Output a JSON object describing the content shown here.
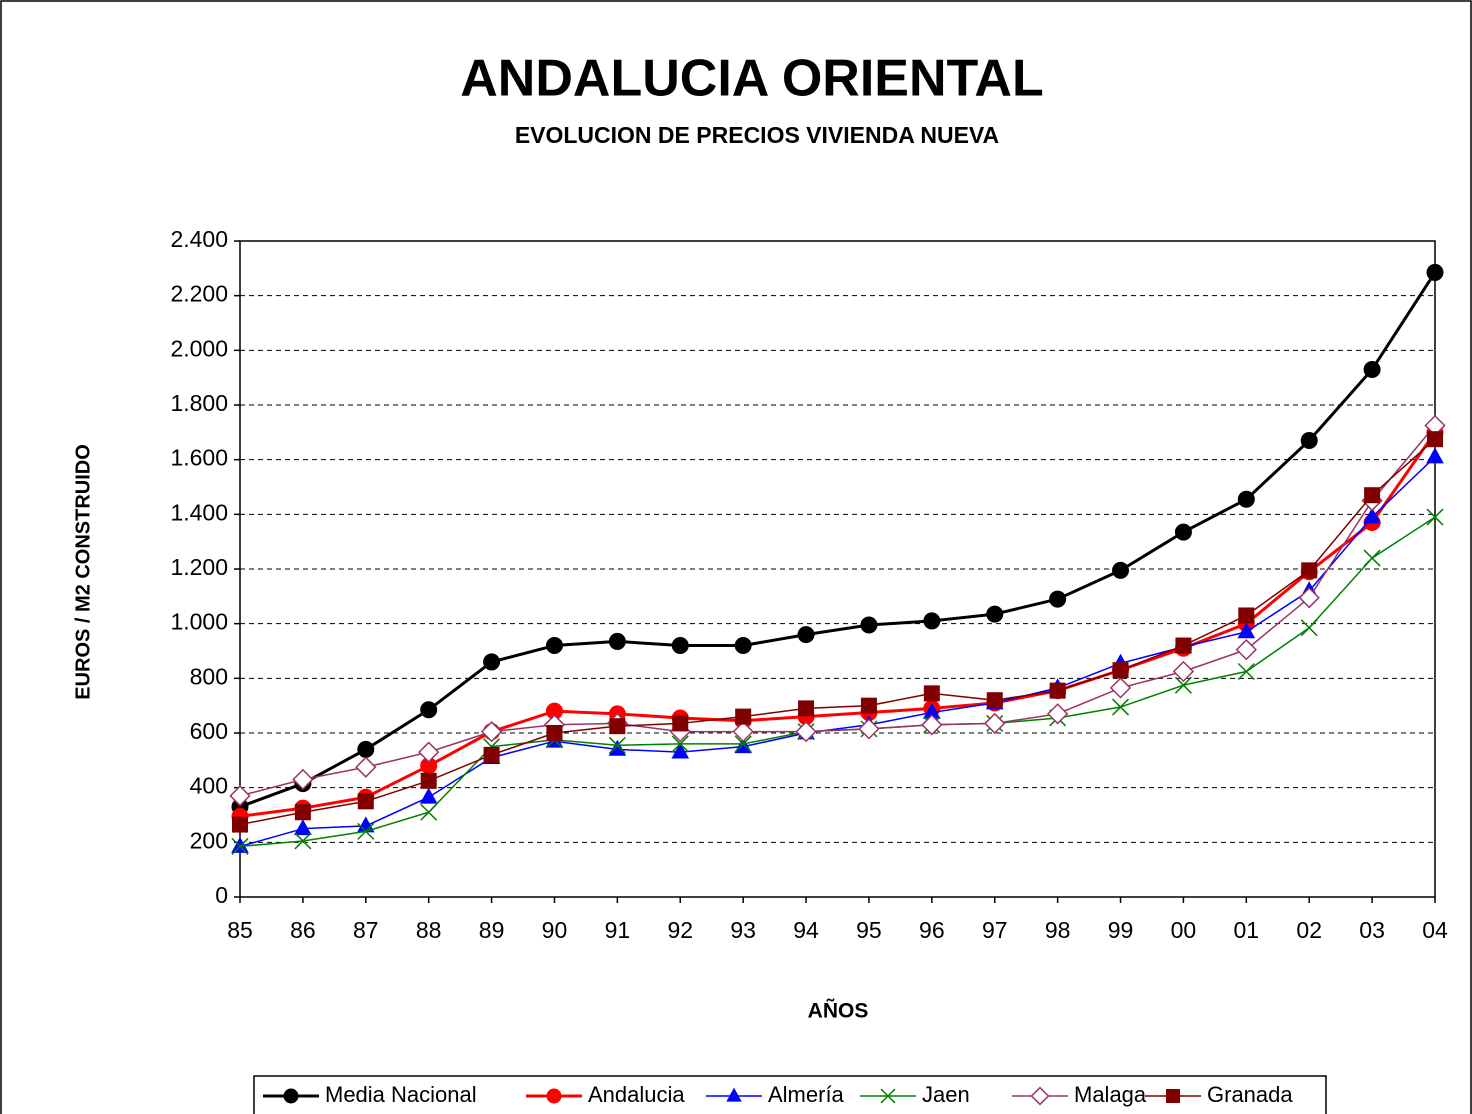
{
  "chart_data": {
    "type": "line",
    "title": "ANDALUCIA  ORIENTAL",
    "subtitle": "EVOLUCION DE PRECIOS VIVIENDA NUEVA",
    "x_label": "AÑOS",
    "y_label": "EUROS / M2 CONSTRUIDO",
    "categories": [
      "85",
      "86",
      "87",
      "88",
      "89",
      "90",
      "91",
      "92",
      "93",
      "94",
      "95",
      "96",
      "97",
      "98",
      "99",
      "00",
      "01",
      "02",
      "03",
      "04"
    ],
    "series": [
      {
        "name": "Media Nacional",
        "color": "#000000",
        "marker": "circle",
        "values": [
          330,
          415,
          540,
          685,
          860,
          920,
          935,
          920,
          920,
          960,
          995,
          1010,
          1035,
          1090,
          1195,
          1335,
          1455,
          1670,
          1930,
          2285
        ]
      },
      {
        "name": "Andalucia",
        "color": "#ff0000",
        "marker": "circle",
        "values": [
          295,
          325,
          365,
          480,
          605,
          680,
          670,
          655,
          645,
          660,
          675,
          690,
          710,
          755,
          830,
          910,
          1000,
          1190,
          1370,
          1700
        ]
      },
      {
        "name": "Almería",
        "color": "#0000ff",
        "marker": "triangle",
        "values": [
          185,
          250,
          260,
          365,
          510,
          570,
          540,
          530,
          550,
          600,
          630,
          675,
          710,
          765,
          855,
          915,
          970,
          1120,
          1390,
          1610
        ]
      },
      {
        "name": "Jaen",
        "color": "#008000",
        "marker": "x",
        "values": [
          185,
          205,
          240,
          310,
          550,
          575,
          555,
          560,
          560,
          605,
          615,
          630,
          635,
          655,
          695,
          775,
          825,
          985,
          1240,
          1390
        ]
      },
      {
        "name": "Malaga",
        "color": "#993366",
        "marker": "diamond",
        "values": [
          370,
          430,
          475,
          530,
          605,
          630,
          635,
          605,
          605,
          605,
          615,
          630,
          635,
          670,
          765,
          825,
          905,
          1095,
          1450,
          1725
        ]
      },
      {
        "name": "Granada",
        "color": "#800000",
        "marker": "square",
        "values": [
          265,
          310,
          350,
          425,
          520,
          600,
          625,
          635,
          660,
          690,
          700,
          745,
          720,
          755,
          830,
          920,
          1030,
          1195,
          1470,
          1675
        ]
      }
    ],
    "ylim": [
      0,
      2400
    ],
    "yticks": [
      0,
      200,
      400,
      600,
      800,
      {
        "value": 1000,
        "label": "1.000"
      },
      {
        "value": 1200,
        "label": "1.200"
      },
      {
        "value": 1400,
        "label": "1.400"
      },
      {
        "value": 1600,
        "label": "1.600"
      },
      {
        "value": 1800,
        "label": "1.800"
      },
      {
        "value": 2000,
        "label": "2.000"
      },
      {
        "value": 2200,
        "label": "2.200"
      },
      {
        "value": 2400,
        "label": "2.400"
      }
    ],
    "grid": true,
    "legend": "bottom"
  }
}
